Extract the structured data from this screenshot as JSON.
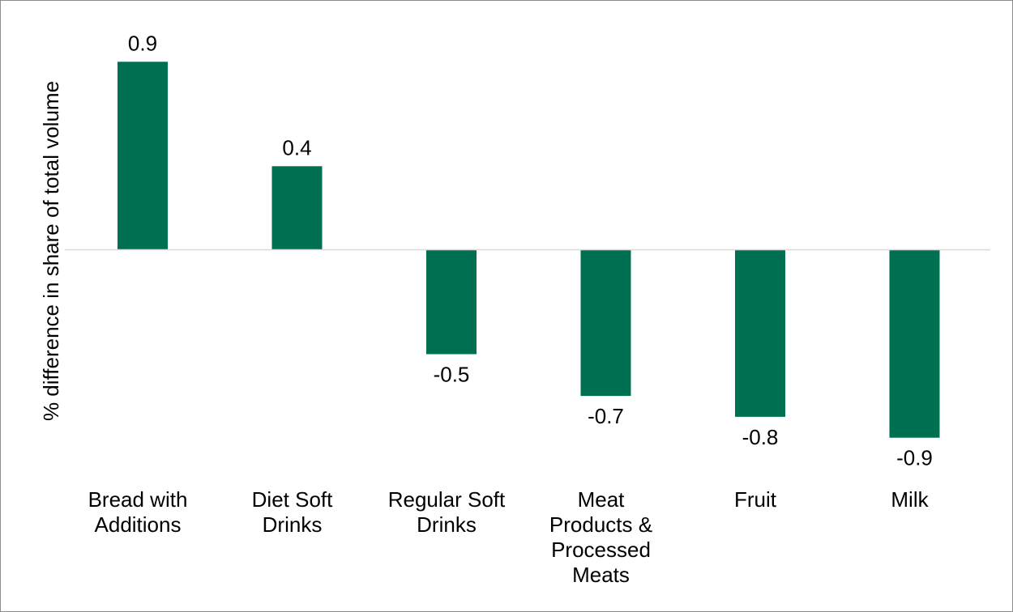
{
  "chart_data": {
    "type": "bar",
    "title": "",
    "xlabel": "",
    "ylabel": "% difference in share of total volume",
    "categories": [
      [
        "Bread with",
        "Additions"
      ],
      [
        "Diet Soft",
        "Drinks"
      ],
      [
        "Regular Soft",
        "Drinks"
      ],
      [
        "Meat",
        "Products &",
        "Processed",
        "Meats"
      ],
      [
        "Fruit"
      ],
      [
        "Milk"
      ]
    ],
    "values": [
      0.9,
      0.4,
      -0.5,
      -0.7,
      -0.8,
      -0.9
    ],
    "data_labels": [
      "0.9",
      "0.4",
      "-0.5",
      "-0.7",
      "-0.8",
      "-0.9"
    ],
    "ylim": [
      -0.9,
      0.9
    ],
    "grid": false,
    "legend": "none",
    "colors": {
      "bar": "#007053",
      "axis": "#d9d9d9",
      "border": "#8c8c8c"
    }
  }
}
